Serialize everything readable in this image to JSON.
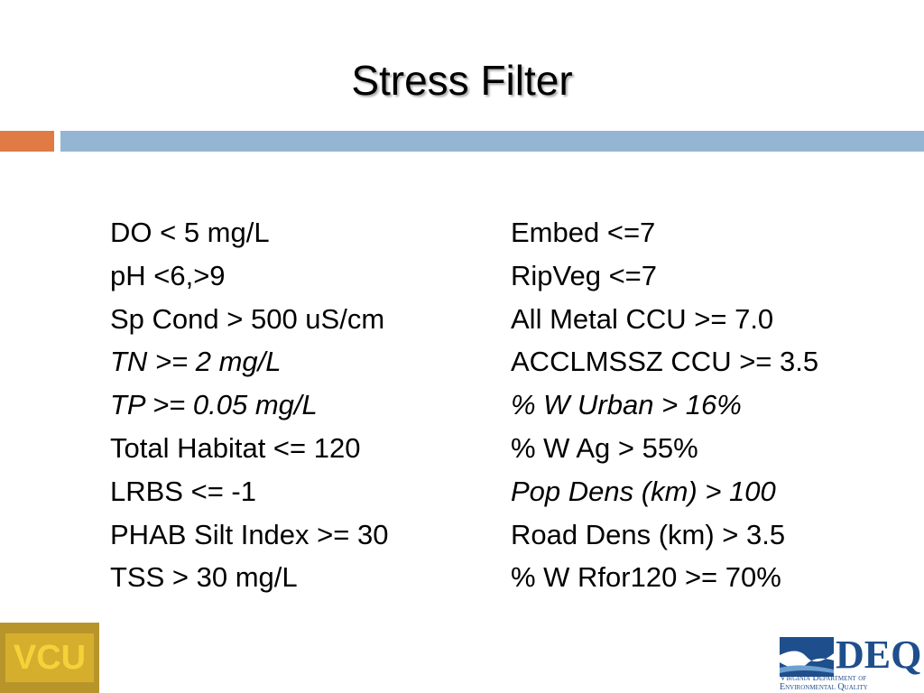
{
  "header": {
    "title": "Stress Filter"
  },
  "columns": [
    {
      "items": [
        {
          "text": "DO < 5 mg/L",
          "italic": false
        },
        {
          "text": "pH <6,>9",
          "italic": false
        },
        {
          "text": "Sp Cond > 500 uS/cm",
          "italic": false
        },
        {
          "text": "TN >= 2 mg/L",
          "italic": true
        },
        {
          "text": "TP >= 0.05 mg/L",
          "italic": true
        },
        {
          "text": "Total Habitat <= 120",
          "italic": false
        },
        {
          "text": "LRBS <= -1",
          "italic": false
        },
        {
          "text": "PHAB Silt Index >= 30",
          "italic": false
        },
        {
          "text": "TSS > 30 mg/L",
          "italic": false
        }
      ]
    },
    {
      "items": [
        {
          "text": "Embed <=7",
          "italic": false
        },
        {
          "text": "RipVeg <=7",
          "italic": false
        },
        {
          "text": "All Metal CCU >= 7.0",
          "italic": false
        },
        {
          "text": "ACCLMSSZ CCU >= 3.5",
          "italic": false
        },
        {
          "text": "% W Urban > 16%",
          "italic": true
        },
        {
          "text": "% W Ag > 55%",
          "italic": false
        },
        {
          "text": "Pop Dens (km) > 100",
          "italic": true
        },
        {
          "text": "Road Dens (km) > 3.5",
          "italic": false
        },
        {
          "text": "% W Rfor120 >= 70%",
          "italic": false
        }
      ]
    }
  ],
  "logos": {
    "left": "VCU",
    "right": {
      "name": "DEQ",
      "line1": "Virginia Department of",
      "line2": "Environmental Quality"
    }
  }
}
